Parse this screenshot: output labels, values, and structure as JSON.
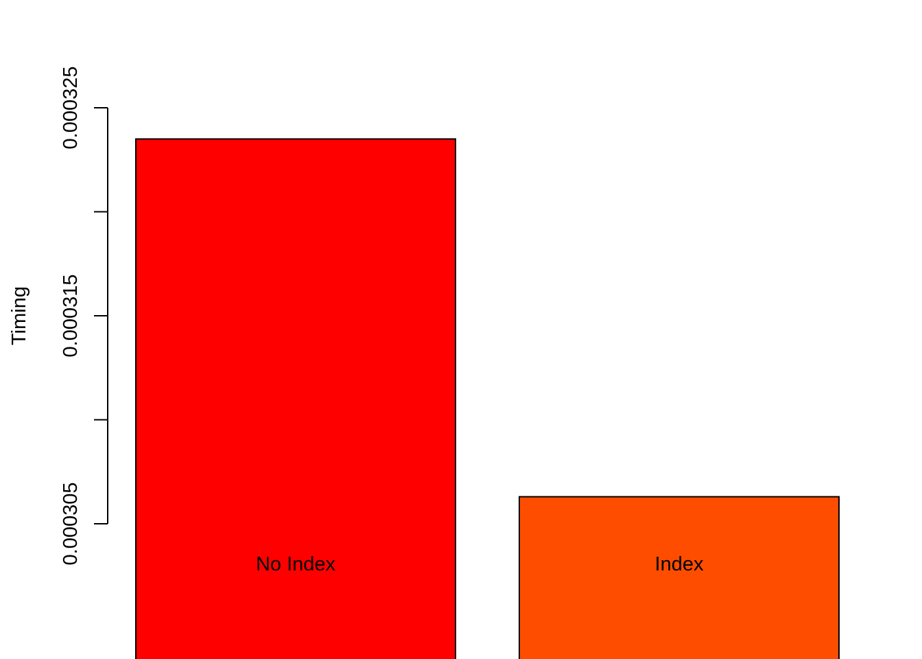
{
  "chart_data": {
    "type": "bar",
    "categories": [
      "No Index",
      "Index"
    ],
    "values": [
      0.0003235,
      0.0003063
    ],
    "colors": [
      "#ff0000",
      "#ff4d00"
    ],
    "xlabel": "",
    "ylabel": "Timing",
    "ylim": [
      0.0003,
      0.000325
    ],
    "yticks": [
      0.000305,
      0.00031,
      0.000315,
      0.00032,
      0.000325
    ],
    "ytick_labels": [
      "0.000305",
      "",
      "0.000315",
      "",
      "0.000325"
    ],
    "grid": false,
    "legend": "none",
    "category_labels_inside_bars": true
  }
}
